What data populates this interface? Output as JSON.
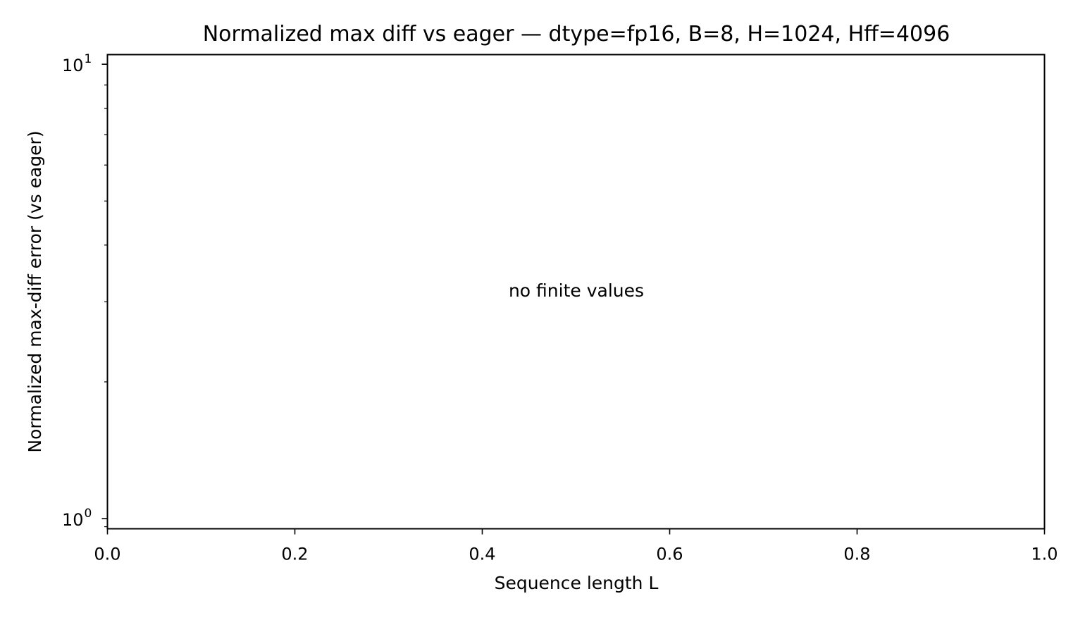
{
  "chart_data": {
    "type": "line",
    "title": "Normalized max diff vs eager — dtype=fp16, B=8, H=1024, Hff=4096",
    "xlabel": "Sequence length L",
    "ylabel": "Normalized max-diff error (vs eager)",
    "xlim": [
      0.0,
      1.0
    ],
    "ylim": [
      0.95,
      10.5
    ],
    "yscale": "log",
    "grid": false,
    "x_ticks": [
      "0.0",
      "0.2",
      "0.4",
      "0.6",
      "0.8",
      "1.0"
    ],
    "y_ticks": [
      {
        "base": "10",
        "exponent": "0"
      },
      {
        "base": "10",
        "exponent": "1"
      }
    ],
    "annotation": "no finite values",
    "series": []
  }
}
